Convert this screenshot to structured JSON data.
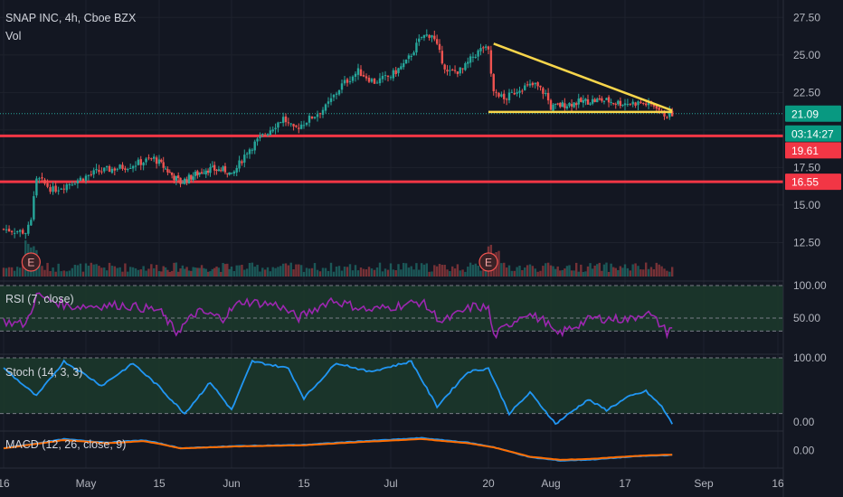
{
  "header": {
    "title": "SNAP INC, 4h, Cboe BZX",
    "volume_label": "Vol"
  },
  "colors": {
    "background": "#131722",
    "up": "#26a69a",
    "down": "#ef5350",
    "grid": "#363a45",
    "support": "#f23645",
    "triangle": "#f7d54b",
    "rsi": "#9c27b0",
    "stoch": "#2196f3",
    "macd_signal": "#ff6d00",
    "band_fill": "#1c3a2c",
    "last_price_badge": "#089981",
    "countdown_badge": "#089981",
    "level_badge": "#f23645"
  },
  "chart_data": [
    {
      "type": "candlestick",
      "pane": "price",
      "title": "SNAP INC, 4h, Cboe BZX",
      "x_ticks": [
        "16",
        "May",
        "15",
        "Jun",
        "15",
        "Jul",
        "20",
        "Aug",
        "17",
        "Sep",
        "16"
      ],
      "x_tick_dates": [
        "2023-04-16",
        "2023-05-01",
        "2023-05-15",
        "2023-06-01",
        "2023-06-15",
        "2023-07-01",
        "2023-07-20",
        "2023-08-01",
        "2023-08-17",
        "2023-09-01",
        "2023-09-16"
      ],
      "y_ticks": [
        12.5,
        15.0,
        17.5,
        20.0,
        22.5,
        25.0,
        27.5
      ],
      "y_tick_labels": [
        "12.50",
        "15.00",
        "17.50",
        "20.00",
        "22.50",
        "25.00",
        "27.50"
      ],
      "ylim": [
        10.6,
        28.3
      ],
      "last_price": 21.09,
      "last_price_label": "21.09",
      "countdown_label": "03:14:27",
      "horizontal_levels": [
        {
          "value": 19.61,
          "label": "19.61"
        },
        {
          "value": 16.55,
          "label": "16.55"
        }
      ],
      "triangle": {
        "upper": {
          "from": [
            "2023-07-21",
            25.75
          ],
          "to": [
            "2023-08-26",
            21.3
          ]
        },
        "lower": {
          "from": [
            "2023-07-20",
            21.2
          ],
          "to": [
            "2023-08-26",
            21.2
          ]
        }
      },
      "earnings_markers": [
        {
          "date": "2023-04-21",
          "label": "E"
        },
        {
          "date": "2023-07-20",
          "label": "E"
        }
      ],
      "anchors": [
        [
          "2023-04-16",
          13.4
        ],
        [
          "2023-04-20",
          13.2
        ],
        [
          "2023-04-21",
          14.2
        ],
        [
          "2023-04-22",
          16.8
        ],
        [
          "2023-04-25",
          16.0
        ],
        [
          "2023-04-29",
          16.6
        ],
        [
          "2023-05-03",
          17.2
        ],
        [
          "2023-05-09",
          17.6
        ],
        [
          "2023-05-14",
          18.1
        ],
        [
          "2023-05-18",
          17.0
        ],
        [
          "2023-05-20",
          16.5
        ],
        [
          "2023-05-26",
          17.4
        ],
        [
          "2023-05-31",
          17.3
        ],
        [
          "2023-06-01",
          16.9
        ],
        [
          "2023-06-04",
          18.6
        ],
        [
          "2023-06-07",
          19.6
        ],
        [
          "2023-06-11",
          20.8
        ],
        [
          "2023-06-13",
          20.0
        ],
        [
          "2023-06-15",
          20.5
        ],
        [
          "2023-06-19",
          21.5
        ],
        [
          "2023-06-22",
          23.0
        ],
        [
          "2023-06-25",
          23.9
        ],
        [
          "2023-06-28",
          23.2
        ],
        [
          "2023-07-01",
          23.6
        ],
        [
          "2023-07-04",
          24.5
        ],
        [
          "2023-07-07",
          26.2
        ],
        [
          "2023-07-09",
          26.4
        ],
        [
          "2023-07-12",
          23.8
        ],
        [
          "2023-07-15",
          24.0
        ],
        [
          "2023-07-17",
          24.9
        ],
        [
          "2023-07-19",
          25.5
        ],
        [
          "2023-07-20",
          25.2
        ],
        [
          "2023-07-21",
          22.8
        ],
        [
          "2023-07-23",
          22.0
        ],
        [
          "2023-07-26",
          22.8
        ],
        [
          "2023-07-29",
          23.0
        ],
        [
          "2023-07-31",
          22.4
        ],
        [
          "2023-08-01",
          21.5
        ],
        [
          "2023-08-04",
          21.7
        ],
        [
          "2023-08-08",
          21.9
        ],
        [
          "2023-08-12",
          22.0
        ],
        [
          "2023-08-16",
          21.8
        ],
        [
          "2023-08-20",
          21.8
        ],
        [
          "2023-08-23",
          21.6
        ],
        [
          "2023-08-24",
          21.1
        ],
        [
          "2023-08-25",
          21.0
        ],
        [
          "2023-08-26",
          21.09
        ]
      ]
    },
    {
      "type": "bar",
      "pane": "volume",
      "name": "Vol"
    },
    {
      "type": "line",
      "pane": "rsi",
      "name": "RSI (7, close)",
      "y_ticks": [
        50,
        100
      ],
      "y_tick_labels": [
        "50.00",
        "100.00"
      ],
      "ylim": [
        0,
        100
      ],
      "bands": [
        30,
        70
      ],
      "anchors": [
        [
          "2023-04-16",
          45
        ],
        [
          "2023-04-20",
          40
        ],
        [
          "2023-04-22",
          85
        ],
        [
          "2023-04-28",
          68
        ],
        [
          "2023-05-08",
          70
        ],
        [
          "2023-05-15",
          62
        ],
        [
          "2023-05-19",
          28
        ],
        [
          "2023-05-24",
          60
        ],
        [
          "2023-05-30",
          50
        ],
        [
          "2023-06-03",
          76
        ],
        [
          "2023-06-10",
          70
        ],
        [
          "2023-06-14",
          50
        ],
        [
          "2023-06-20",
          78
        ],
        [
          "2023-06-27",
          62
        ],
        [
          "2023-07-07",
          75
        ],
        [
          "2023-07-11",
          44
        ],
        [
          "2023-07-17",
          68
        ],
        [
          "2023-07-20",
          65
        ],
        [
          "2023-07-21",
          22
        ],
        [
          "2023-07-27",
          58
        ],
        [
          "2023-07-31",
          45
        ],
        [
          "2023-08-02",
          24
        ],
        [
          "2023-08-10",
          50
        ],
        [
          "2023-08-18",
          48
        ],
        [
          "2023-08-21",
          60
        ],
        [
          "2023-08-24",
          38
        ],
        [
          "2023-08-25",
          28
        ],
        [
          "2023-08-26",
          38
        ]
      ]
    },
    {
      "type": "line",
      "pane": "stoch",
      "name": "Stoch (14, 3, 3)",
      "y_ticks": [
        0,
        100
      ],
      "y_tick_labels": [
        "0.00",
        "100.00"
      ],
      "ylim": [
        0,
        100
      ],
      "bands": [
        20,
        80
      ],
      "anchors": [
        [
          "2023-04-16",
          85
        ],
        [
          "2023-04-22",
          45
        ],
        [
          "2023-04-27",
          95
        ],
        [
          "2023-05-04",
          60
        ],
        [
          "2023-05-10",
          92
        ],
        [
          "2023-05-17",
          45
        ],
        [
          "2023-05-21",
          20
        ],
        [
          "2023-05-27",
          65
        ],
        [
          "2023-06-01",
          25
        ],
        [
          "2023-06-05",
          95
        ],
        [
          "2023-06-12",
          85
        ],
        [
          "2023-06-15",
          42
        ],
        [
          "2023-06-21",
          93
        ],
        [
          "2023-06-27",
          80
        ],
        [
          "2023-07-05",
          95
        ],
        [
          "2023-07-10",
          30
        ],
        [
          "2023-07-16",
          80
        ],
        [
          "2023-07-20",
          85
        ],
        [
          "2023-07-24",
          20
        ],
        [
          "2023-07-28",
          50
        ],
        [
          "2023-08-02",
          5
        ],
        [
          "2023-08-09",
          40
        ],
        [
          "2023-08-13",
          25
        ],
        [
          "2023-08-18",
          45
        ],
        [
          "2023-08-21",
          52
        ],
        [
          "2023-08-24",
          30
        ],
        [
          "2023-08-26",
          5
        ]
      ]
    },
    {
      "type": "line",
      "pane": "macd",
      "name": "MACD (12, 26, close, 9)",
      "y_ticks": [
        0
      ],
      "y_tick_labels": [
        "0.00"
      ],
      "ylim": [
        -1.4,
        1.4
      ],
      "anchors": [
        [
          "2023-04-16",
          0.2
        ],
        [
          "2023-04-27",
          1.0
        ],
        [
          "2023-05-05",
          0.7
        ],
        [
          "2023-05-12",
          0.9
        ],
        [
          "2023-05-20",
          0.2
        ],
        [
          "2023-06-03",
          0.4
        ],
        [
          "2023-06-15",
          0.5
        ],
        [
          "2023-06-25",
          0.8
        ],
        [
          "2023-07-07",
          1.1
        ],
        [
          "2023-07-16",
          0.7
        ],
        [
          "2023-07-21",
          0.3
        ],
        [
          "2023-07-28",
          -0.6
        ],
        [
          "2023-08-03",
          -0.9
        ],
        [
          "2023-08-10",
          -0.8
        ],
        [
          "2023-08-20",
          -0.5
        ],
        [
          "2023-08-26",
          -0.4
        ]
      ]
    }
  ]
}
